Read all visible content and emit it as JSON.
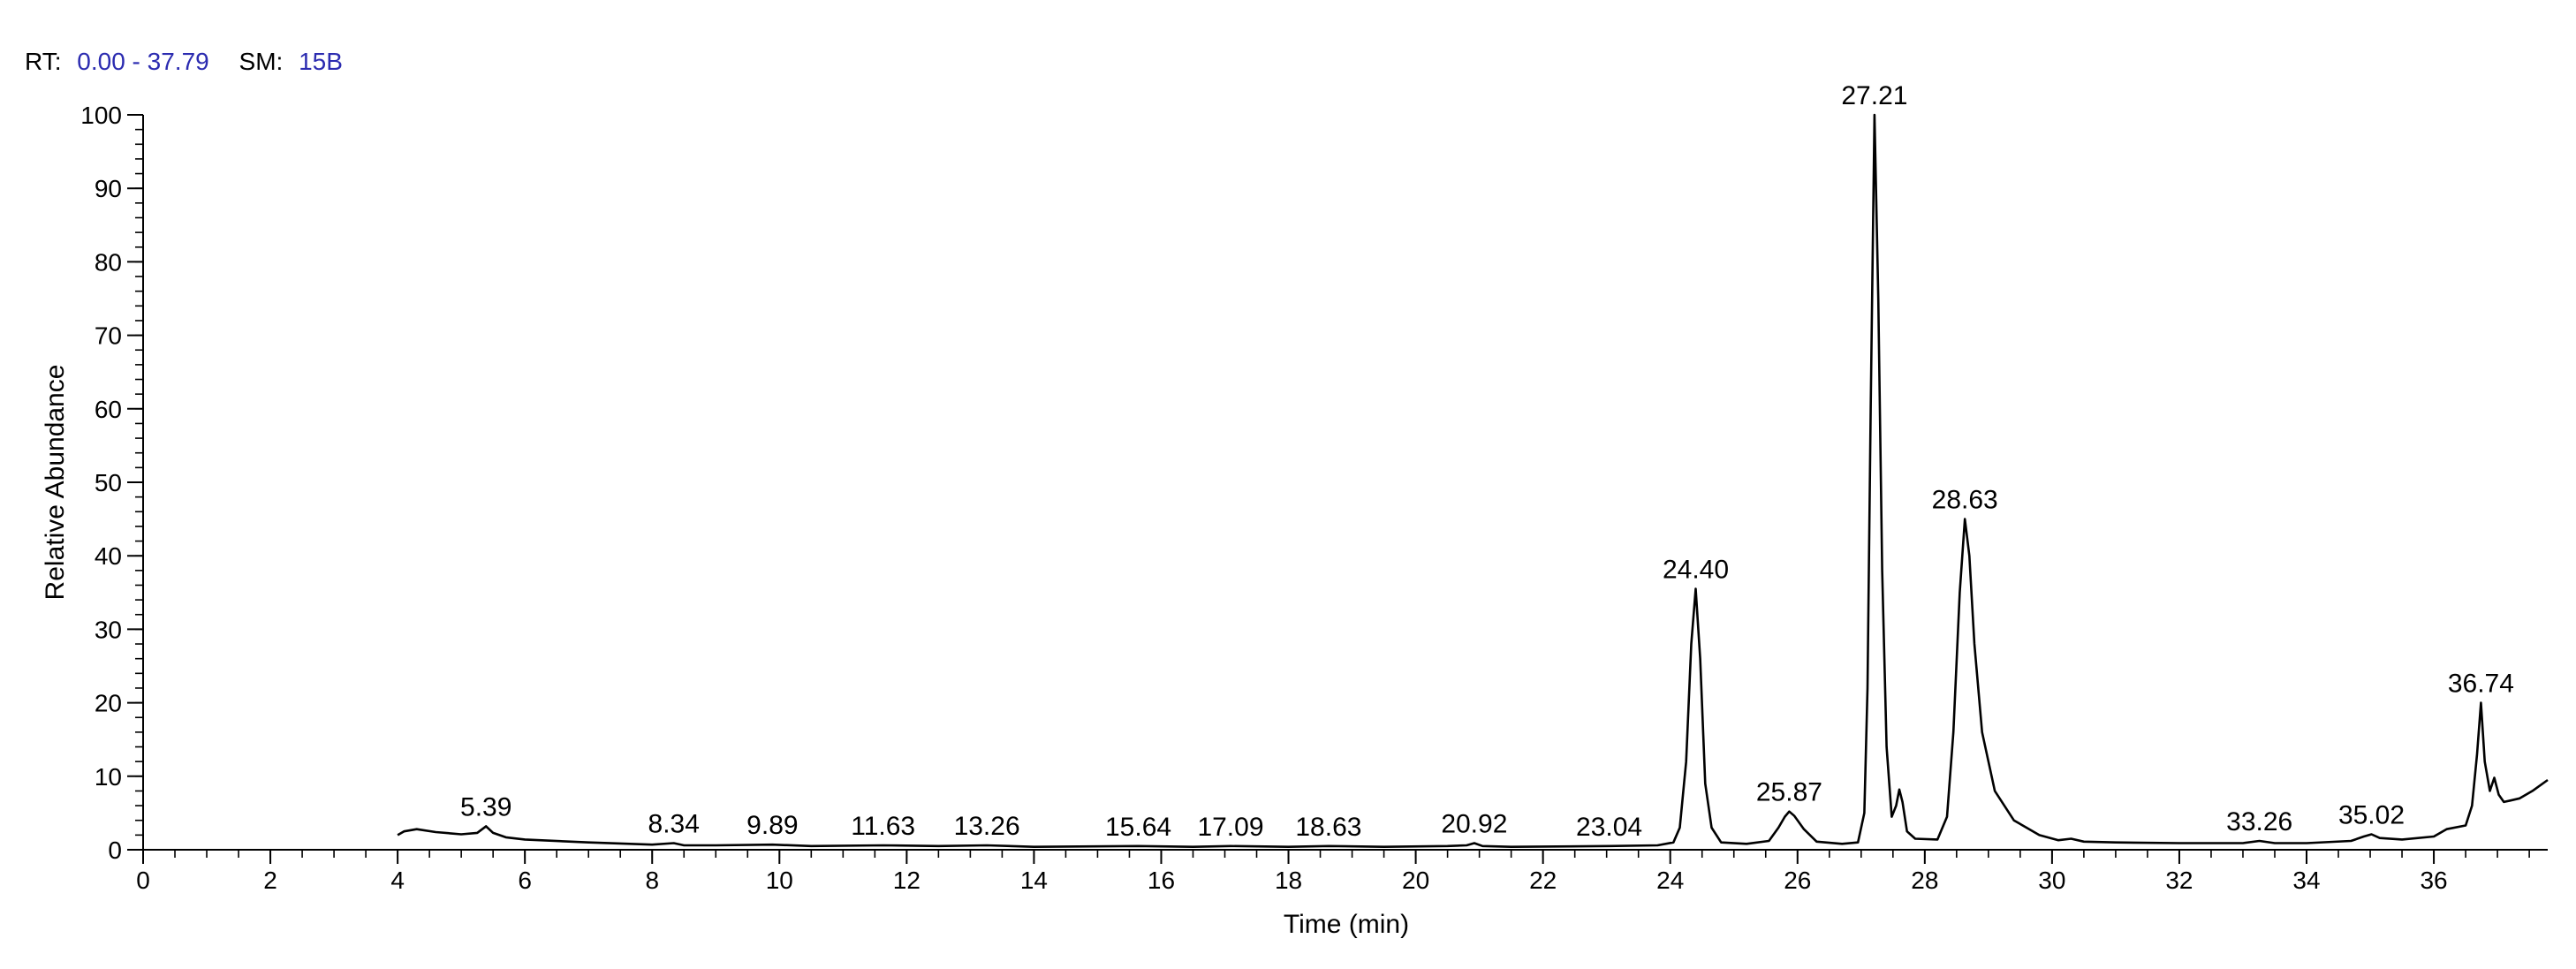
{
  "header": {
    "rt_key": "RT:",
    "rt_value": "0.00 - 37.79",
    "sm_key": "SM:",
    "sm_value": "15B"
  },
  "colors": {
    "header_value": "#2b2bb0",
    "trace": "#000000",
    "axis": "#000000"
  },
  "chart_data": {
    "type": "line",
    "title": "",
    "xlabel": "Time (min)",
    "ylabel": "Relative Abundance",
    "xlim": [
      0,
      37.79
    ],
    "ylim": [
      0,
      100
    ],
    "x_ticks": [
      0,
      2,
      4,
      6,
      8,
      10,
      12,
      14,
      16,
      18,
      20,
      22,
      24,
      26,
      28,
      30,
      32,
      34,
      36
    ],
    "x_tick_labels": [
      "0",
      "2",
      "4",
      "6",
      "8",
      "10",
      "12",
      "14",
      "16",
      "18",
      "20",
      "22",
      "24",
      "26",
      "28",
      "30",
      "32",
      "34",
      "36"
    ],
    "y_ticks": [
      0,
      10,
      20,
      30,
      40,
      50,
      60,
      70,
      80,
      90,
      100
    ],
    "y_tick_labels": [
      "0",
      "10",
      "20",
      "30",
      "40",
      "50",
      "60",
      "70",
      "80",
      "90",
      "100"
    ],
    "x_minor_step": 0.5,
    "y_minor_step": 2,
    "grid": false,
    "legend": "none",
    "series": [
      {
        "x": [
          4.0,
          4.1,
          4.3,
          4.6,
          5.0,
          5.25,
          5.39,
          5.5,
          5.7,
          6.0,
          7.0,
          8.0,
          8.34,
          8.5,
          9.0,
          9.89,
          10.5,
          11.63,
          12.5,
          13.26,
          14.0,
          15.64,
          16.5,
          17.09,
          18.0,
          18.63,
          19.5,
          20.5,
          20.8,
          20.92,
          21.05,
          21.5,
          23.04,
          23.8,
          24.05,
          24.15,
          24.25,
          24.33,
          24.4,
          24.47,
          24.55,
          24.65,
          24.8,
          25.2,
          25.55,
          25.7,
          25.8,
          25.87,
          25.95,
          26.1,
          26.3,
          26.7,
          26.95,
          27.05,
          27.1,
          27.15,
          27.21,
          27.27,
          27.33,
          27.4,
          27.48,
          27.55,
          27.6,
          27.65,
          27.72,
          27.85,
          28.2,
          28.35,
          28.45,
          28.55,
          28.63,
          28.7,
          28.78,
          28.9,
          29.1,
          29.4,
          29.8,
          30.1,
          30.3,
          30.5,
          31.0,
          32.0,
          33.0,
          33.26,
          33.5,
          34.0,
          34.7,
          34.9,
          35.02,
          35.15,
          35.5,
          36.0,
          36.2,
          36.5,
          36.6,
          36.68,
          36.74,
          36.8,
          36.88,
          36.95,
          37.02,
          37.1,
          37.2,
          37.35,
          37.55,
          37.79
        ],
        "y": [
          2.0,
          2.5,
          2.8,
          2.4,
          2.1,
          2.3,
          3.2,
          2.3,
          1.7,
          1.4,
          1.0,
          0.7,
          0.9,
          0.6,
          0.6,
          0.7,
          0.5,
          0.6,
          0.5,
          0.6,
          0.4,
          0.5,
          0.4,
          0.5,
          0.4,
          0.5,
          0.4,
          0.5,
          0.6,
          0.9,
          0.5,
          0.4,
          0.5,
          0.6,
          1.0,
          3.0,
          12.0,
          28.0,
          35.5,
          26.0,
          9.0,
          3.0,
          1.0,
          0.8,
          1.2,
          3.0,
          4.5,
          5.2,
          4.6,
          2.8,
          1.1,
          0.8,
          1.0,
          5.0,
          22.0,
          60.0,
          100.0,
          75.0,
          38.0,
          14.0,
          4.5,
          6.0,
          8.2,
          6.5,
          2.5,
          1.5,
          1.4,
          4.5,
          16.0,
          35.0,
          45.0,
          40.0,
          28.0,
          16.0,
          8.0,
          4.0,
          2.0,
          1.3,
          1.5,
          1.1,
          1.0,
          0.9,
          0.9,
          1.2,
          0.9,
          0.9,
          1.2,
          1.8,
          2.1,
          1.6,
          1.4,
          1.8,
          2.8,
          3.3,
          6.0,
          13.0,
          20.0,
          12.0,
          8.0,
          9.8,
          7.5,
          6.5,
          6.7,
          7.0,
          8.0,
          9.5
        ]
      }
    ],
    "annotations": [
      {
        "x": 5.39,
        "y": 3.2,
        "text": "5.39"
      },
      {
        "x": 8.34,
        "y": 0.9,
        "text": "8.34"
      },
      {
        "x": 9.89,
        "y": 0.7,
        "text": "9.89"
      },
      {
        "x": 11.63,
        "y": 0.6,
        "text": "11.63"
      },
      {
        "x": 13.26,
        "y": 0.6,
        "text": "13.26"
      },
      {
        "x": 15.64,
        "y": 0.5,
        "text": "15.64"
      },
      {
        "x": 17.09,
        "y": 0.5,
        "text": "17.09"
      },
      {
        "x": 18.63,
        "y": 0.5,
        "text": "18.63"
      },
      {
        "x": 20.92,
        "y": 0.9,
        "text": "20.92"
      },
      {
        "x": 23.04,
        "y": 0.5,
        "text": "23.04"
      },
      {
        "x": 24.4,
        "y": 35.5,
        "text": "24.40"
      },
      {
        "x": 25.87,
        "y": 5.2,
        "text": "25.87"
      },
      {
        "x": 27.21,
        "y": 100.0,
        "text": "27.21"
      },
      {
        "x": 28.63,
        "y": 45.0,
        "text": "28.63"
      },
      {
        "x": 33.26,
        "y": 1.2,
        "text": "33.26"
      },
      {
        "x": 35.02,
        "y": 2.1,
        "text": "35.02"
      },
      {
        "x": 36.74,
        "y": 20.0,
        "text": "36.74"
      }
    ]
  }
}
